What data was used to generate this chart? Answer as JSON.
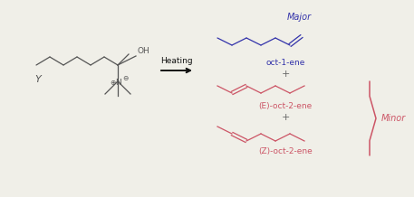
{
  "bg_color": "#f0efe8",
  "reactant_color": "#555555",
  "major_color": "#3333aa",
  "minor_color": "#cc5566",
  "arrow_color": "#111111",
  "label_major": "Major",
  "label_minor": "Minor",
  "label_oct1ene": "oct-1-ene",
  "label_Eoct2ene": "(E)-oct-2-ene",
  "label_Zoct2ene": "(Z)-oct-2-ene",
  "label_Y": "Y",
  "label_OH": "OH",
  "label_heating": "Heating",
  "plus_color": "#666666",
  "fs_small": 6.0,
  "fs_label": 6.5,
  "fs_heading": 7.0,
  "lw_mol": 0.9
}
